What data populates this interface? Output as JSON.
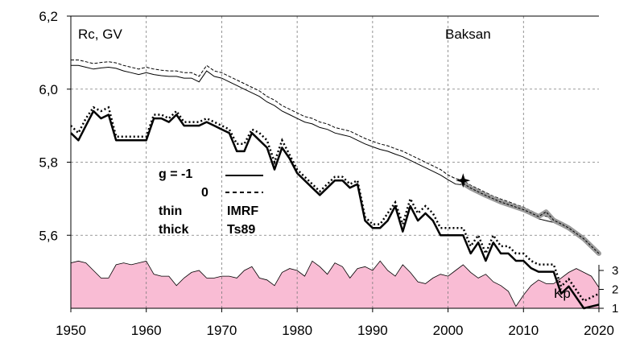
{
  "chart_data": {
    "type": "line",
    "ylabel": "Rc, GV",
    "station": "Baksan",
    "xlim": [
      1950,
      2020
    ],
    "ylim": [
      5.4,
      6.2
    ],
    "x_ticks": [
      "1950",
      "1960",
      "1970",
      "1980",
      "1990",
      "2000",
      "2010",
      "2020"
    ],
    "y_ticks": [
      "6,2",
      "6,0",
      "5,8",
      "5,6"
    ],
    "y_tick_values": [
      6.2,
      6.0,
      5.8,
      5.6
    ],
    "grid": true,
    "legend": {
      "g_label": "g  = -1",
      "g_zero": "0",
      "thin": "thin",
      "thick": "thick",
      "imrf": "IMRF",
      "ts89": "Ts89"
    },
    "marker_year": 2002,
    "series": [
      {
        "key": "thin_g1",
        "line": "thin-solid",
        "x": [
          1950,
          1951,
          1952,
          1953,
          1954,
          1955,
          1956,
          1957,
          1958,
          1959,
          1960,
          1961,
          1962,
          1963,
          1964,
          1965,
          1966,
          1967,
          1968,
          1969,
          1970,
          1971,
          1972,
          1973,
          1974,
          1975,
          1976,
          1977,
          1978,
          1979,
          1980,
          1981,
          1982,
          1983,
          1984,
          1985,
          1986,
          1987,
          1988,
          1989,
          1990,
          1991,
          1992,
          1993,
          1994,
          1995,
          1996,
          1997,
          1998,
          1999,
          2000,
          2001,
          2002,
          2003,
          2004,
          2005,
          2006,
          2007,
          2008,
          2009,
          2010,
          2011,
          2012,
          2013,
          2014,
          2015,
          2016,
          2017,
          2018,
          2019,
          2020
        ],
        "values": [
          6.065,
          6.065,
          6.06,
          6.055,
          6.058,
          6.06,
          6.057,
          6.05,
          6.045,
          6.04,
          6.045,
          6.04,
          6.037,
          6.035,
          6.035,
          6.03,
          6.03,
          6.02,
          6.05,
          6.035,
          6.03,
          6.02,
          6.01,
          6.0,
          5.99,
          5.98,
          5.965,
          5.955,
          5.94,
          5.93,
          5.92,
          5.91,
          5.905,
          5.895,
          5.89,
          5.88,
          5.875,
          5.87,
          5.86,
          5.85,
          5.842,
          5.835,
          5.83,
          5.822,
          5.815,
          5.805,
          5.795,
          5.785,
          5.775,
          5.765,
          5.752,
          5.74,
          5.738,
          5.725,
          5.715,
          5.705,
          5.695,
          5.687,
          5.68,
          5.672,
          5.665,
          5.655,
          5.645,
          5.64,
          5.635,
          5.625,
          5.615,
          5.6,
          5.585,
          5.565,
          5.545
        ]
      },
      {
        "key": "thin_g0",
        "line": "thin-dashed",
        "x": [
          1950,
          1951,
          1952,
          1953,
          1954,
          1955,
          1956,
          1957,
          1958,
          1959,
          1960,
          1961,
          1962,
          1963,
          1964,
          1965,
          1966,
          1967,
          1968,
          1969,
          1970,
          1971,
          1972,
          1973,
          1974,
          1975,
          1976,
          1977,
          1978,
          1979,
          1980,
          1981,
          1982,
          1983,
          1984,
          1985,
          1986,
          1987,
          1988,
          1989,
          1990,
          1991,
          1992,
          1993,
          1994,
          1995,
          1996,
          1997,
          1998,
          1999,
          2000,
          2001,
          2002,
          2003,
          2004,
          2005,
          2006,
          2007,
          2008,
          2009,
          2010,
          2011,
          2012,
          2013,
          2014,
          2015,
          2016,
          2017,
          2018,
          2019,
          2020
        ],
        "values": [
          6.08,
          6.08,
          6.075,
          6.07,
          6.073,
          6.075,
          6.072,
          6.065,
          6.06,
          6.055,
          6.06,
          6.055,
          6.052,
          6.05,
          6.05,
          6.045,
          6.045,
          6.035,
          6.065,
          6.05,
          6.045,
          6.035,
          6.025,
          6.015,
          6.005,
          5.995,
          5.98,
          5.97,
          5.955,
          5.945,
          5.935,
          5.925,
          5.92,
          5.91,
          5.905,
          5.895,
          5.89,
          5.885,
          5.875,
          5.865,
          5.857,
          5.85,
          5.845,
          5.837,
          5.83,
          5.82,
          5.81,
          5.8,
          5.79,
          5.78,
          5.765,
          5.755,
          5.75,
          5.737,
          5.727,
          5.717,
          5.707,
          5.699,
          5.692,
          5.684,
          5.677,
          5.667,
          5.657,
          5.652,
          5.645,
          5.635,
          5.625,
          5.61,
          5.595,
          5.575,
          5.555
        ]
      },
      {
        "key": "thick_g1",
        "line": "thick-solid",
        "x": [
          1950,
          1951,
          1952,
          1953,
          1954,
          1955,
          1956,
          1957,
          1958,
          1959,
          1960,
          1961,
          1962,
          1963,
          1964,
          1965,
          1966,
          1967,
          1968,
          1969,
          1970,
          1971,
          1972,
          1973,
          1974,
          1975,
          1976,
          1977,
          1978,
          1979,
          1980,
          1981,
          1982,
          1983,
          1984,
          1985,
          1986,
          1987,
          1988,
          1989,
          1990,
          1991,
          1992,
          1993,
          1994,
          1995,
          1996,
          1997,
          1998,
          1999,
          2000,
          2001,
          2002,
          2003,
          2004,
          2005,
          2006,
          2007,
          2008,
          2009,
          2010,
          2011,
          2012,
          2013,
          2014,
          2015,
          2016,
          2017,
          2018,
          2019,
          2020
        ],
        "values": [
          5.88,
          5.86,
          5.9,
          5.94,
          5.92,
          5.93,
          5.86,
          5.86,
          5.86,
          5.86,
          5.86,
          5.92,
          5.92,
          5.91,
          5.93,
          5.9,
          5.9,
          5.9,
          5.91,
          5.9,
          5.89,
          5.88,
          5.83,
          5.83,
          5.88,
          5.86,
          5.84,
          5.78,
          5.84,
          5.81,
          5.77,
          5.75,
          5.73,
          5.71,
          5.73,
          5.75,
          5.75,
          5.73,
          5.74,
          5.64,
          5.62,
          5.62,
          5.64,
          5.68,
          5.61,
          5.68,
          5.64,
          5.66,
          5.64,
          5.6,
          5.6,
          5.6,
          5.6,
          5.55,
          5.58,
          5.53,
          5.58,
          5.55,
          5.55,
          5.53,
          5.53,
          5.51,
          5.5,
          5.5,
          5.5,
          5.44,
          5.46,
          5.43,
          5.4,
          5.405,
          5.41
        ]
      },
      {
        "key": "thick_g0",
        "line": "thick-dotted",
        "x": [
          1950,
          1951,
          1952,
          1953,
          1954,
          1955,
          1956,
          1957,
          1958,
          1959,
          1960,
          1961,
          1962,
          1963,
          1964,
          1965,
          1966,
          1967,
          1968,
          1969,
          1970,
          1971,
          1972,
          1973,
          1974,
          1975,
          1976,
          1977,
          1978,
          1979,
          1980,
          1981,
          1982,
          1983,
          1984,
          1985,
          1986,
          1987,
          1988,
          1989,
          1990,
          1991,
          1992,
          1993,
          1994,
          1995,
          1996,
          1997,
          1998,
          1999,
          2000,
          2001,
          2002,
          2003,
          2004,
          2005,
          2006,
          2007,
          2008,
          2009,
          2010,
          2011,
          2012,
          2013,
          2014,
          2015,
          2016,
          2017,
          2018,
          2019,
          2020
        ],
        "values": [
          5.9,
          5.88,
          5.92,
          5.95,
          5.94,
          5.95,
          5.87,
          5.87,
          5.87,
          5.87,
          5.87,
          5.93,
          5.93,
          5.92,
          5.94,
          5.91,
          5.91,
          5.91,
          5.92,
          5.91,
          5.9,
          5.89,
          5.85,
          5.85,
          5.89,
          5.88,
          5.86,
          5.8,
          5.86,
          5.82,
          5.78,
          5.76,
          5.74,
          5.72,
          5.74,
          5.76,
          5.76,
          5.74,
          5.75,
          5.65,
          5.63,
          5.63,
          5.66,
          5.69,
          5.63,
          5.7,
          5.66,
          5.68,
          5.66,
          5.62,
          5.62,
          5.62,
          5.62,
          5.57,
          5.6,
          5.55,
          5.6,
          5.57,
          5.57,
          5.55,
          5.55,
          5.53,
          5.52,
          5.52,
          5.52,
          5.46,
          5.48,
          5.45,
          5.42,
          5.43,
          5.44
        ]
      },
      {
        "key": "ts89_band",
        "line": "gray-band",
        "x": [
          2002,
          2003,
          2004,
          2005,
          2006,
          2007,
          2008,
          2009,
          2010,
          2011,
          2012,
          2013,
          2014,
          2015,
          2016,
          2017,
          2018,
          2019,
          2020
        ],
        "values": [
          5.742,
          5.729,
          5.719,
          5.709,
          5.7,
          5.691,
          5.684,
          5.677,
          5.67,
          5.661,
          5.651,
          5.664,
          5.641,
          5.631,
          5.62,
          5.605,
          5.59,
          5.57,
          5.55
        ]
      }
    ],
    "kp": {
      "label": "Kp",
      "ticks": [
        "3",
        "2",
        "1"
      ],
      "tick_values": [
        3,
        2,
        1
      ],
      "color": "#f9bcd4",
      "x": [
        1950,
        1951,
        1952,
        1953,
        1954,
        1955,
        1956,
        1957,
        1958,
        1959,
        1960,
        1961,
        1962,
        1963,
        1964,
        1965,
        1966,
        1967,
        1968,
        1969,
        1970,
        1971,
        1972,
        1973,
        1974,
        1975,
        1976,
        1977,
        1978,
        1979,
        1980,
        1981,
        1982,
        1983,
        1984,
        1985,
        1986,
        1987,
        1988,
        1989,
        1990,
        1991,
        1992,
        1993,
        1994,
        1995,
        1996,
        1997,
        1998,
        1999,
        2000,
        2001,
        2002,
        2003,
        2004,
        2005,
        2006,
        2007,
        2008,
        2009,
        2010,
        2011,
        2012,
        2013,
        2014,
        2015,
        2016,
        2017,
        2018,
        2019,
        2020
      ],
      "values": [
        3.4,
        3.5,
        3.4,
        3.0,
        2.6,
        2.6,
        3.3,
        3.4,
        3.3,
        3.4,
        3.5,
        2.8,
        2.7,
        2.7,
        2.2,
        2.6,
        2.9,
        3.0,
        2.6,
        2.6,
        2.7,
        2.7,
        2.6,
        3.0,
        3.2,
        2.6,
        2.5,
        2.2,
        2.9,
        3.1,
        3.0,
        2.7,
        3.5,
        3.2,
        2.8,
        3.4,
        3.2,
        2.6,
        3.1,
        3.2,
        3.0,
        3.5,
        3.0,
        2.7,
        3.3,
        2.9,
        2.4,
        2.3,
        2.6,
        2.8,
        2.7,
        3.0,
        3.3,
        2.9,
        2.6,
        2.8,
        2.4,
        2.2,
        1.9,
        1.1,
        1.7,
        2.2,
        2.5,
        2.3,
        2.3,
        2.6,
        2.9,
        3.1,
        2.9,
        2.7,
        2.1
      ]
    }
  }
}
